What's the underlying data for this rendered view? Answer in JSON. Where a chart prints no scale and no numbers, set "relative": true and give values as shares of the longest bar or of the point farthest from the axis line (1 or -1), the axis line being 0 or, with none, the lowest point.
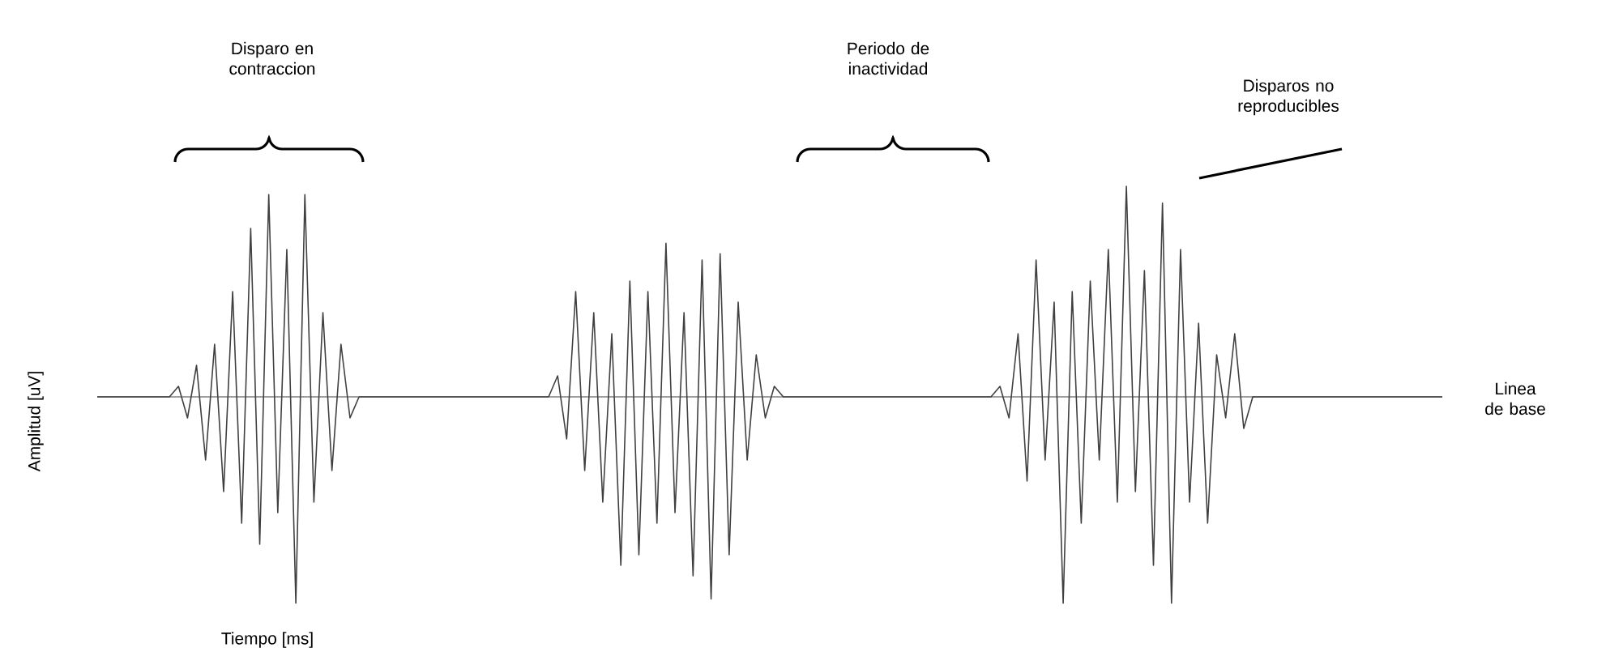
{
  "chart_data": {
    "type": "line",
    "relative": true,
    "xlabel": "Tiempo [ms]",
    "ylabel": "Amplitud [uV]",
    "color": "#404040",
    "annotations": [
      "Disparo en contraccion",
      "Periodo de inactividad",
      "Disparos no reproducibles",
      "Linea de base"
    ],
    "categories": [
      null,
      null,
      null,
      null,
      null,
      null,
      null,
      null,
      null,
      null,
      null,
      null,
      null,
      null,
      null,
      null,
      null,
      null,
      null,
      null,
      null,
      null,
      null,
      null,
      null,
      null,
      null,
      null,
      null,
      null,
      null,
      null,
      null,
      null,
      null,
      null,
      null,
      null,
      null,
      null,
      null,
      null,
      null,
      null,
      null,
      null,
      null,
      null,
      null,
      null,
      null,
      null,
      null,
      null,
      null,
      null,
      null,
      null,
      null,
      null,
      null,
      null,
      null,
      null,
      null,
      null,
      null,
      null,
      null,
      null,
      null,
      null,
      null,
      null,
      null,
      null,
      null,
      null,
      null,
      null,
      null,
      null,
      null,
      null,
      null,
      null,
      null,
      null,
      null,
      null,
      null,
      null,
      null,
      null,
      null,
      null,
      null,
      null,
      null,
      null,
      null,
      null,
      null,
      null,
      null,
      null,
      null,
      null,
      null,
      null,
      null,
      null,
      null,
      null,
      null,
      null,
      null,
      null,
      null,
      null,
      null,
      null,
      null,
      null,
      null,
      null,
      null,
      null,
      null,
      null,
      null,
      null,
      null,
      null,
      null,
      null,
      null,
      null,
      null,
      null,
      null,
      null,
      null,
      null,
      null,
      null,
      null,
      null,
      null,
      null
    ],
    "values": [
      0,
      0,
      0,
      0,
      0,
      0,
      0,
      0,
      0,
      0.05,
      -0.1,
      0.15,
      -0.3,
      0.25,
      -0.45,
      0.5,
      -0.6,
      0.8,
      -0.7,
      0.96,
      -0.55,
      0.7,
      -0.98,
      0.96,
      -0.5,
      0.4,
      -0.35,
      0.25,
      -0.1,
      0,
      0,
      0,
      0,
      0,
      0,
      0,
      0,
      0,
      0,
      0,
      0,
      0,
      0,
      0,
      0,
      0,
      0,
      0,
      0,
      0,
      0,
      0.1,
      -0.2,
      0.5,
      -0.35,
      0.4,
      -0.5,
      0.3,
      -0.8,
      0.55,
      -0.75,
      0.5,
      -0.6,
      0.73,
      -0.55,
      0.4,
      -0.85,
      0.65,
      -0.96,
      0.68,
      -0.75,
      0.45,
      -0.3,
      0.2,
      -0.1,
      0.05,
      0,
      0,
      0,
      0,
      0,
      0,
      0,
      0,
      0,
      0,
      0,
      0,
      0,
      0,
      0,
      0,
      0,
      0,
      0,
      0,
      0,
      0,
      0,
      0,
      0.05,
      -0.1,
      0.3,
      -0.4,
      0.65,
      -0.3,
      0.45,
      -0.98,
      0.5,
      -0.6,
      0.55,
      -0.3,
      0.7,
      -0.5,
      1,
      -0.45,
      0.6,
      -0.8,
      0.92,
      -0.98,
      0.7,
      -0.5,
      0.35,
      -0.6,
      0.2,
      -0.1,
      0.3,
      -0.15,
      0,
      0,
      0,
      0,
      0,
      0,
      0,
      0,
      0,
      0,
      0,
      0,
      0,
      0,
      0,
      0,
      0,
      0,
      0,
      0,
      0,
      0
    ]
  }
}
